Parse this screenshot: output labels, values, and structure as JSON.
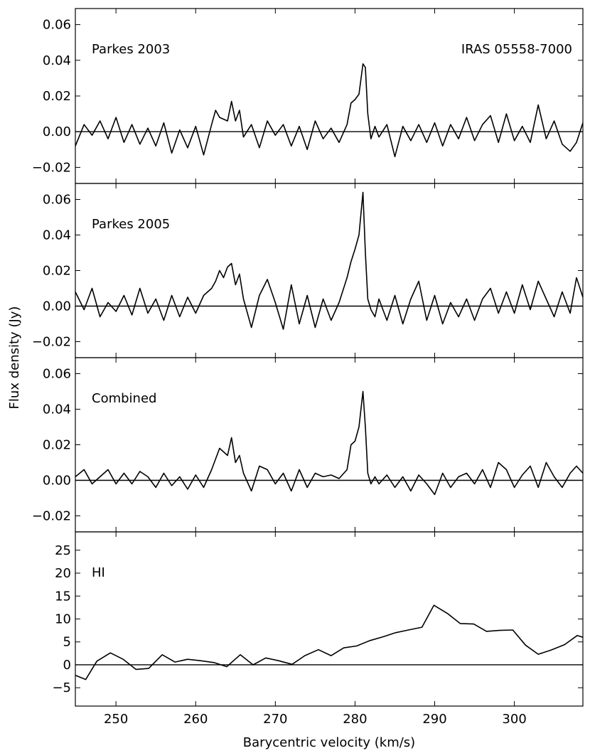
{
  "chart_data": {
    "type": "line",
    "xlabel": "Barycentric velocity (km/s)",
    "ylabel": "Flux density (Jy)",
    "xlim": [
      244.9,
      308.6
    ],
    "x_ticks": [
      250,
      260,
      270,
      280,
      290,
      300
    ],
    "x_tick_labels": [
      "250",
      "260",
      "270",
      "280",
      "290",
      "300"
    ],
    "grid": false,
    "panels": [
      {
        "id": "parkes2003",
        "label": "Parkes 2003",
        "annotation": "IRAS 05558-7000",
        "ylim": [
          -0.029,
          0.069
        ],
        "y_ticks": [
          -0.02,
          0.0,
          0.02,
          0.04,
          0.06
        ],
        "y_tick_labels": [
          "−0.02",
          "0.00",
          "0.02",
          "0.04",
          "0.06"
        ],
        "baseline": 0,
        "series": [
          {
            "x": [
              244.9,
              246.0,
              247.0,
              248.0,
              249.0,
              250.0,
              251.0,
              252.0,
              253.0,
              254.0,
              255.0,
              256.0,
              257.0,
              258.0,
              259.0,
              260.0,
              261.0,
              262.0,
              262.5,
              263.0,
              264.0,
              264.5,
              265.0,
              265.5,
              266.0,
              267.0,
              268.0,
              269.0,
              270.0,
              271.0,
              272.0,
              273.0,
              274.0,
              275.0,
              276.0,
              277.0,
              278.0,
              279.0,
              279.5,
              280.0,
              280.5,
              281.0,
              281.3,
              281.6,
              282.0,
              282.5,
              283.0,
              284.0,
              285.0,
              286.0,
              287.0,
              288.0,
              289.0,
              290.0,
              291.0,
              292.0,
              293.0,
              294.0,
              295.0,
              296.0,
              297.0,
              298.0,
              299.0,
              300.0,
              301.0,
              302.0,
              303.0,
              304.0,
              305.0,
              306.0,
              307.0,
              307.8,
              308.6
            ],
            "y": [
              -0.008,
              0.004,
              -0.002,
              0.006,
              -0.004,
              0.008,
              -0.006,
              0.004,
              -0.007,
              0.002,
              -0.008,
              0.005,
              -0.012,
              0.001,
              -0.009,
              0.003,
              -0.013,
              0.004,
              0.012,
              0.008,
              0.006,
              0.017,
              0.006,
              0.012,
              -0.003,
              0.004,
              -0.009,
              0.006,
              -0.002,
              0.004,
              -0.008,
              0.003,
              -0.01,
              0.006,
              -0.004,
              0.002,
              -0.006,
              0.004,
              0.016,
              0.018,
              0.021,
              0.038,
              0.036,
              0.01,
              -0.004,
              0.003,
              -0.003,
              0.004,
              -0.014,
              0.003,
              -0.005,
              0.004,
              -0.006,
              0.005,
              -0.008,
              0.004,
              -0.004,
              0.008,
              -0.005,
              0.004,
              0.009,
              -0.006,
              0.01,
              -0.005,
              0.003,
              -0.006,
              0.015,
              -0.004,
              0.006,
              -0.007,
              -0.011,
              -0.006,
              0.005
            ]
          }
        ]
      },
      {
        "id": "parkes2005",
        "label": "Parkes 2005",
        "ylim": [
          -0.029,
          0.069
        ],
        "y_ticks": [
          -0.02,
          0.0,
          0.02,
          0.04,
          0.06
        ],
        "y_tick_labels": [
          "−0.02",
          "0.00",
          "0.02",
          "0.04",
          "0.06"
        ],
        "baseline": 0,
        "series": [
          {
            "x": [
              244.9,
              246.0,
              247.0,
              248.0,
              249.0,
              250.0,
              251.0,
              252.0,
              253.0,
              254.0,
              255.0,
              256.0,
              257.0,
              258.0,
              259.0,
              260.0,
              261.0,
              262.0,
              262.5,
              263.0,
              263.5,
              264.0,
              264.5,
              265.0,
              265.5,
              266.0,
              267.0,
              268.0,
              269.0,
              270.0,
              271.0,
              272.0,
              273.0,
              274.0,
              275.0,
              276.0,
              277.0,
              278.0,
              279.0,
              279.5,
              280.0,
              280.5,
              281.0,
              281.3,
              281.6,
              282.0,
              282.5,
              283.0,
              284.0,
              285.0,
              286.0,
              287.0,
              288.0,
              289.0,
              290.0,
              291.0,
              292.0,
              293.0,
              294.0,
              295.0,
              296.0,
              297.0,
              298.0,
              299.0,
              300.0,
              301.0,
              302.0,
              303.0,
              304.0,
              305.0,
              306.0,
              307.0,
              307.8,
              308.6
            ],
            "y": [
              0.008,
              -0.002,
              0.01,
              -0.006,
              0.002,
              -0.003,
              0.006,
              -0.005,
              0.01,
              -0.004,
              0.004,
              -0.008,
              0.006,
              -0.006,
              0.005,
              -0.004,
              0.006,
              0.01,
              0.014,
              0.02,
              0.016,
              0.022,
              0.024,
              0.012,
              0.018,
              0.004,
              -0.012,
              0.006,
              0.015,
              0.002,
              -0.013,
              0.012,
              -0.01,
              0.006,
              -0.012,
              0.004,
              -0.008,
              0.002,
              0.016,
              0.025,
              0.032,
              0.04,
              0.064,
              0.03,
              0.004,
              -0.002,
              -0.006,
              0.004,
              -0.008,
              0.006,
              -0.01,
              0.004,
              0.014,
              -0.008,
              0.006,
              -0.01,
              0.002,
              -0.006,
              0.004,
              -0.008,
              0.004,
              0.01,
              -0.004,
              0.008,
              -0.004,
              0.012,
              -0.002,
              0.014,
              0.004,
              -0.006,
              0.008,
              -0.004,
              0.016,
              0.005
            ]
          }
        ]
      },
      {
        "id": "combined",
        "label": "Combined",
        "ylim": [
          -0.029,
          0.069
        ],
        "y_ticks": [
          -0.02,
          0.0,
          0.02,
          0.04,
          0.06
        ],
        "y_tick_labels": [
          "−0.02",
          "0.00",
          "0.02",
          "0.04",
          "0.06"
        ],
        "baseline": 0,
        "series": [
          {
            "x": [
              244.9,
              246.0,
              247.0,
              248.0,
              249.0,
              250.0,
              251.0,
              252.0,
              253.0,
              254.0,
              255.0,
              256.0,
              257.0,
              258.0,
              259.0,
              260.0,
              261.0,
              262.0,
              262.5,
              263.0,
              263.5,
              264.0,
              264.5,
              265.0,
              265.5,
              266.0,
              267.0,
              268.0,
              269.0,
              270.0,
              271.0,
              272.0,
              273.0,
              274.0,
              275.0,
              276.0,
              277.0,
              278.0,
              279.0,
              279.5,
              280.0,
              280.5,
              281.0,
              281.3,
              281.6,
              282.0,
              282.5,
              283.0,
              284.0,
              285.0,
              286.0,
              287.0,
              288.0,
              289.0,
              290.0,
              291.0,
              292.0,
              293.0,
              294.0,
              295.0,
              296.0,
              297.0,
              298.0,
              299.0,
              300.0,
              301.0,
              302.0,
              303.0,
              304.0,
              305.0,
              306.0,
              307.0,
              307.8,
              308.6
            ],
            "y": [
              0.002,
              0.006,
              -0.002,
              0.002,
              0.006,
              -0.002,
              0.004,
              -0.002,
              0.005,
              0.002,
              -0.004,
              0.004,
              -0.003,
              0.002,
              -0.005,
              0.003,
              -0.004,
              0.006,
              0.012,
              0.018,
              0.016,
              0.014,
              0.024,
              0.01,
              0.014,
              0.004,
              -0.006,
              0.008,
              0.006,
              -0.002,
              0.004,
              -0.006,
              0.006,
              -0.004,
              0.004,
              0.002,
              0.003,
              0.001,
              0.006,
              0.02,
              0.022,
              0.03,
              0.05,
              0.03,
              0.004,
              -0.002,
              0.002,
              -0.002,
              0.003,
              -0.004,
              0.002,
              -0.006,
              0.003,
              -0.002,
              -0.008,
              0.004,
              -0.004,
              0.002,
              0.004,
              -0.002,
              0.006,
              -0.004,
              0.01,
              0.006,
              -0.004,
              0.003,
              0.008,
              -0.004,
              0.01,
              0.002,
              -0.004,
              0.004,
              0.008,
              0.004
            ]
          }
        ]
      },
      {
        "id": "hi",
        "label": "HI",
        "ylim": [
          -9,
          29
        ],
        "y_ticks": [
          -5,
          0,
          5,
          10,
          15,
          20,
          25
        ],
        "y_tick_labels": [
          "−5",
          "0",
          "5",
          "10",
          "15",
          "20",
          "25"
        ],
        "baseline": 0,
        "series": [
          {
            "x": [
              244.9,
              246.2,
              247.6,
              249.3,
              250.9,
              252.5,
              254.1,
              255.8,
              257.4,
              259.0,
              260.6,
              262.3,
              263.9,
              265.6,
              267.2,
              268.8,
              270.4,
              272.1,
              273.7,
              275.4,
              277.0,
              278.6,
              280.2,
              281.9,
              283.5,
              285.1,
              286.7,
              288.4,
              289.9,
              291.6,
              293.2,
              294.9,
              296.5,
              298.1,
              299.8,
              301.4,
              303.0,
              304.6,
              306.3,
              307.9,
              308.6
            ],
            "y": [
              -2.3,
              -3.2,
              0.8,
              2.6,
              1.2,
              -1.0,
              -0.8,
              2.2,
              0.6,
              1.2,
              0.9,
              0.5,
              -0.4,
              2.2,
              0.0,
              1.5,
              0.9,
              0.1,
              2.0,
              3.3,
              2.0,
              3.7,
              4.1,
              5.3,
              6.1,
              7.0,
              7.6,
              8.2,
              13.0,
              11.2,
              9.0,
              8.9,
              7.3,
              7.5,
              7.6,
              4.3,
              2.3,
              3.2,
              4.4,
              6.4,
              6.0
            ]
          }
        ]
      }
    ]
  }
}
